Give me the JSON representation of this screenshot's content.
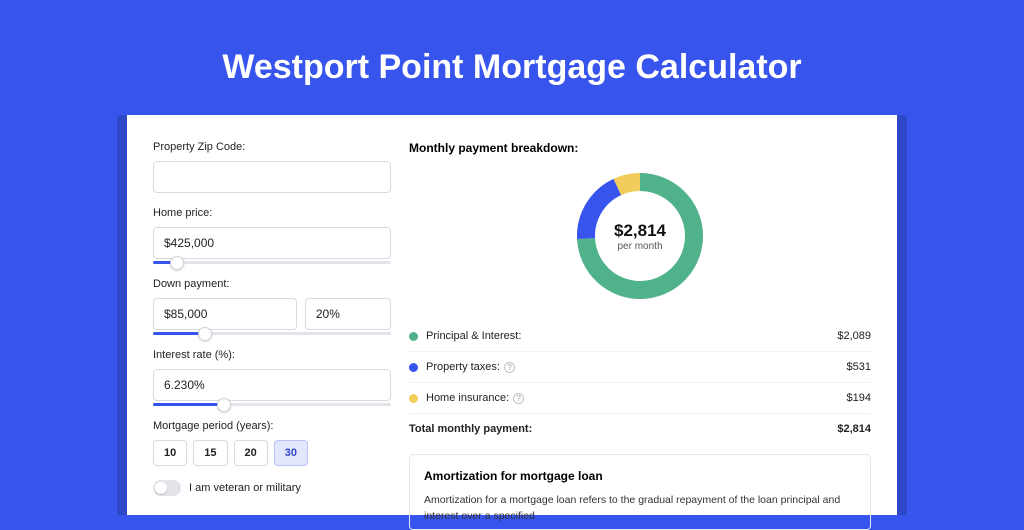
{
  "page": {
    "title": "Westport Point Mortgage Calculator",
    "bg_color": "#3754ed",
    "accent_color": "#3754ed"
  },
  "form": {
    "zip": {
      "label": "Property Zip Code:",
      "value": ""
    },
    "home_price": {
      "label": "Home price:",
      "value": "$425,000",
      "slider_pct": 10
    },
    "down_payment": {
      "label": "Down payment:",
      "amount": "$85,000",
      "percent": "20%",
      "slider_pct": 22
    },
    "interest": {
      "label": "Interest rate (%):",
      "value": "6.230%",
      "slider_pct": 30
    },
    "period": {
      "label": "Mortgage period (years):",
      "options": [
        "10",
        "15",
        "20",
        "30"
      ],
      "selected": "30"
    },
    "veteran": {
      "label": "I am veteran or military",
      "on": false
    }
  },
  "breakdown": {
    "title": "Monthly payment breakdown:",
    "center_amount": "$2,814",
    "center_sub": "per month",
    "donut": {
      "segments": [
        {
          "name": "principal_interest",
          "value": 2089,
          "color": "#4fb28a"
        },
        {
          "name": "property_taxes",
          "value": 531,
          "color": "#3754ed"
        },
        {
          "name": "home_insurance",
          "value": 194,
          "color": "#f3cd5b"
        }
      ],
      "stroke_width": 18
    },
    "legend": {
      "items": [
        {
          "dot": "#4fb28a",
          "label": "Principal & Interest:",
          "value": "$2,089",
          "info": false
        },
        {
          "dot": "#3754ed",
          "label": "Property taxes:",
          "value": "$531",
          "info": true
        },
        {
          "dot": "#f3cd5b",
          "label": "Home insurance:",
          "value": "$194",
          "info": true
        }
      ],
      "total_label": "Total monthly payment:",
      "total_value": "$2,814"
    }
  },
  "amortization": {
    "title": "Amortization for mortgage loan",
    "text": "Amortization for a mortgage loan refers to the gradual repayment of the loan principal and interest over a specified"
  }
}
